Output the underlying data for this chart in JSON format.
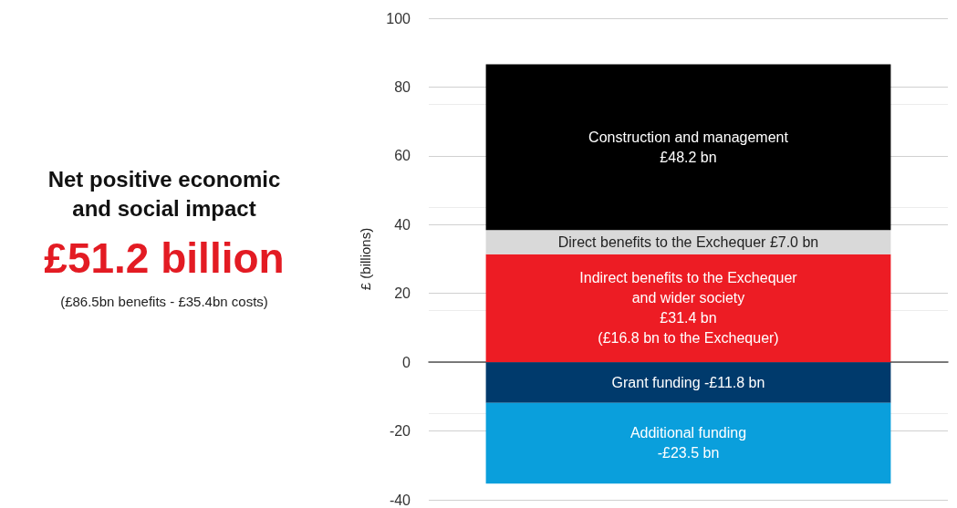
{
  "chart_data": {
    "type": "bar",
    "title": "Net positive economic and social impact",
    "subtitle": "£51.2 billion",
    "annotations": [
      "(£86.5bn benefits - £35.4bn costs)"
    ],
    "ylabel": "£ (billions)",
    "categories": [
      null
    ],
    "stacked": true,
    "series": [
      {
        "color": "#ed1c24",
        "values": [
          31.4
        ],
        "value_labels": [
          "Indirect benefits to the Exchequer\nand wider society\n£31.4 bn\n(£16.8 bn to the Exchequer)"
        ]
      },
      {
        "color": "#d9d9d9",
        "values": [
          7.0
        ],
        "value_labels": [
          "Direct benefits to the Exchequer £7.0 bn"
        ]
      },
      {
        "color": "#000000",
        "values": [
          48.2
        ],
        "value_labels": [
          "Construction and management\n£48.2 bn"
        ]
      },
      {
        "color": "#003a6c",
        "values": [
          -11.8
        ],
        "value_labels": [
          "Grant funding -£11.8 bn"
        ]
      },
      {
        "color": "#0a9fdc",
        "values": [
          -23.5
        ],
        "value_labels": [
          "Additional funding\n-£23.5 bn"
        ]
      }
    ],
    "ylim": [
      -40,
      100
    ],
    "yticks": [
      -40,
      -20,
      0,
      20,
      40,
      60,
      80,
      100
    ],
    "grid": "y"
  }
}
